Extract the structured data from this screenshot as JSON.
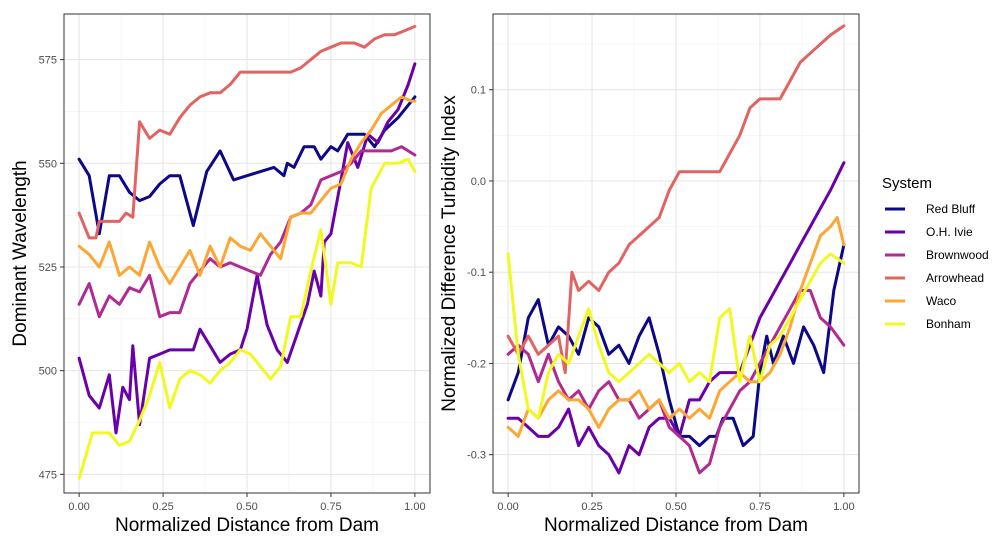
{
  "legend": {
    "title": "System",
    "placement": "right"
  },
  "chart_data": [
    {
      "type": "line",
      "xlabel": "Normalized Distance from Dam",
      "ylabel": "Dominant Wavelength",
      "xlim": [
        -0.045,
        1.045
      ],
      "ylim": [
        470.5,
        586
      ],
      "x_ticks": [
        0.0,
        0.25,
        0.5,
        0.75,
        1.0
      ],
      "x_tick_labels": [
        "0.00",
        "0.25",
        "0.50",
        "0.75",
        "1.00"
      ],
      "y_ticks": [
        475,
        500,
        525,
        550,
        575
      ],
      "y_tick_labels": [
        "475",
        "500",
        "525",
        "550",
        "575"
      ],
      "grid": true,
      "series": [
        {
          "name": "Red Bluff",
          "color": "#0d0887",
          "x": [
            0.0,
            0.03,
            0.06,
            0.09,
            0.12,
            0.15,
            0.18,
            0.21,
            0.24,
            0.27,
            0.3,
            0.34,
            0.38,
            0.42,
            0.46,
            0.5,
            0.54,
            0.58,
            0.61,
            0.62,
            0.64,
            0.67,
            0.7,
            0.72,
            0.75,
            0.77,
            0.8,
            0.83,
            0.85,
            0.88,
            0.91,
            0.95,
            1.0
          ],
          "y": [
            551,
            547,
            533,
            547,
            547,
            543,
            541,
            542,
            545,
            547,
            547,
            535,
            548,
            553,
            546,
            547,
            548,
            549,
            547,
            550,
            549,
            554,
            554,
            551,
            554,
            553,
            557,
            557,
            557,
            554,
            558,
            561,
            566
          ]
        },
        {
          "name": "O.H. Ivie",
          "color": "#6a00a8",
          "x": [
            0.0,
            0.03,
            0.06,
            0.09,
            0.11,
            0.13,
            0.15,
            0.16,
            0.18,
            0.21,
            0.24,
            0.27,
            0.3,
            0.34,
            0.36,
            0.39,
            0.42,
            0.45,
            0.48,
            0.5,
            0.53,
            0.56,
            0.59,
            0.62,
            0.65,
            0.68,
            0.7,
            0.72,
            0.73,
            0.75,
            0.78,
            0.8,
            0.83,
            0.86,
            0.89,
            0.92,
            0.95,
            0.98,
            1.0
          ],
          "y": [
            503,
            494,
            491,
            499,
            485,
            496,
            493,
            506,
            487,
            503,
            504,
            505,
            505,
            505,
            510,
            506,
            502,
            504,
            505,
            510,
            523,
            511,
            505,
            502,
            509,
            516,
            524,
            518,
            531,
            533,
            546,
            555,
            549,
            557,
            555,
            560,
            563,
            569,
            574
          ]
        },
        {
          "name": "Brownwood",
          "color": "#b12a90",
          "x": [
            0.0,
            0.03,
            0.06,
            0.09,
            0.12,
            0.15,
            0.18,
            0.21,
            0.24,
            0.27,
            0.3,
            0.33,
            0.36,
            0.39,
            0.42,
            0.45,
            0.48,
            0.51,
            0.54,
            0.57,
            0.6,
            0.63,
            0.66,
            0.69,
            0.72,
            0.75,
            0.78,
            0.81,
            0.84,
            0.87,
            0.9,
            0.93,
            0.96,
            1.0
          ],
          "y": [
            516,
            521,
            513,
            518,
            516,
            520,
            519,
            523,
            513,
            514,
            514,
            521,
            524,
            527,
            525,
            526,
            525,
            524,
            523,
            528,
            531,
            537,
            538,
            540,
            546,
            547,
            548,
            550,
            553,
            553,
            553,
            553,
            554,
            552
          ]
        },
        {
          "name": "Arrowhead",
          "color": "#e16462",
          "x": [
            0.0,
            0.03,
            0.05,
            0.06,
            0.09,
            0.12,
            0.14,
            0.16,
            0.18,
            0.21,
            0.24,
            0.27,
            0.3,
            0.33,
            0.36,
            0.39,
            0.42,
            0.45,
            0.48,
            0.51,
            0.54,
            0.57,
            0.6,
            0.63,
            0.66,
            0.69,
            0.72,
            0.75,
            0.78,
            0.82,
            0.85,
            0.88,
            0.91,
            0.94,
            0.97,
            1.0
          ],
          "y": [
            538,
            532,
            532,
            536,
            536,
            536,
            538,
            537,
            560,
            556,
            558,
            557,
            561,
            564,
            566,
            567,
            567,
            569,
            572,
            572,
            572,
            572,
            572,
            572,
            573,
            575,
            577,
            578,
            579,
            579,
            578,
            580,
            581,
            581,
            582,
            583
          ]
        },
        {
          "name": "Waco",
          "color": "#fca636",
          "x": [
            0.0,
            0.03,
            0.06,
            0.09,
            0.12,
            0.15,
            0.18,
            0.21,
            0.24,
            0.27,
            0.3,
            0.33,
            0.36,
            0.39,
            0.42,
            0.45,
            0.48,
            0.51,
            0.54,
            0.57,
            0.6,
            0.63,
            0.66,
            0.69,
            0.72,
            0.75,
            0.78,
            0.81,
            0.84,
            0.87,
            0.9,
            0.93,
            0.96,
            0.99,
            1.0
          ],
          "y": [
            530,
            528,
            525,
            531,
            523,
            525,
            523,
            531,
            525,
            521,
            525,
            529,
            523,
            530,
            525,
            532,
            530,
            529,
            533,
            530,
            527,
            537,
            538,
            538,
            541,
            544,
            545,
            551,
            555,
            558,
            562,
            564,
            566,
            565,
            565
          ]
        },
        {
          "name": "Bonham",
          "color": "#f0f921",
          "x": [
            0.0,
            0.04,
            0.06,
            0.09,
            0.12,
            0.15,
            0.18,
            0.21,
            0.24,
            0.27,
            0.3,
            0.33,
            0.36,
            0.39,
            0.42,
            0.45,
            0.48,
            0.51,
            0.54,
            0.57,
            0.6,
            0.63,
            0.66,
            0.69,
            0.72,
            0.75,
            0.77,
            0.81,
            0.84,
            0.87,
            0.91,
            0.95,
            0.98,
            1.0
          ],
          "y": [
            474,
            485,
            485,
            485,
            482,
            483,
            488,
            494,
            502,
            491,
            498,
            500,
            499,
            497,
            500,
            502,
            505,
            504,
            501,
            498,
            501,
            513,
            513,
            524,
            534,
            516,
            526,
            526,
            525,
            544,
            550,
            550,
            551,
            548
          ]
        }
      ]
    },
    {
      "type": "line",
      "xlabel": "Normalized Distance from Dam",
      "ylabel": "Normalized Difference Turbidity Index",
      "xlim": [
        -0.045,
        1.045
      ],
      "ylim": [
        -0.342,
        0.183
      ],
      "x_ticks": [
        0.0,
        0.25,
        0.5,
        0.75,
        1.0
      ],
      "x_tick_labels": [
        "0.00",
        "0.25",
        "0.50",
        "0.75",
        "1.00"
      ],
      "y_ticks": [
        -0.3,
        -0.2,
        -0.1,
        0.0,
        0.1
      ],
      "y_tick_labels": [
        "-0.3",
        "-0.2",
        "-0.1",
        "0.0",
        "0.1"
      ],
      "grid": true,
      "series": [
        {
          "name": "Red Bluff",
          "color": "#0d0887",
          "x": [
            0.0,
            0.03,
            0.06,
            0.09,
            0.12,
            0.15,
            0.18,
            0.21,
            0.24,
            0.27,
            0.3,
            0.33,
            0.36,
            0.39,
            0.42,
            0.45,
            0.48,
            0.51,
            0.54,
            0.57,
            0.6,
            0.62,
            0.64,
            0.67,
            0.7,
            0.73,
            0.75,
            0.77,
            0.79,
            0.82,
            0.85,
            0.88,
            0.91,
            0.94,
            0.97,
            1.0
          ],
          "y": [
            -0.24,
            -0.21,
            -0.15,
            -0.13,
            -0.18,
            -0.16,
            -0.17,
            -0.19,
            -0.15,
            -0.16,
            -0.19,
            -0.18,
            -0.2,
            -0.17,
            -0.15,
            -0.19,
            -0.24,
            -0.28,
            -0.28,
            -0.29,
            -0.28,
            -0.28,
            -0.26,
            -0.26,
            -0.29,
            -0.28,
            -0.21,
            -0.17,
            -0.2,
            -0.17,
            -0.2,
            -0.16,
            -0.18,
            -0.21,
            -0.12,
            -0.07
          ]
        },
        {
          "name": "O.H. Ivie",
          "color": "#6a00a8",
          "x": [
            0.0,
            0.03,
            0.06,
            0.09,
            0.12,
            0.15,
            0.18,
            0.21,
            0.24,
            0.27,
            0.3,
            0.33,
            0.36,
            0.39,
            0.42,
            0.45,
            0.48,
            0.51,
            0.54,
            0.57,
            0.6,
            0.63,
            0.66,
            0.69,
            0.72,
            0.75,
            0.78,
            0.81,
            0.84,
            0.87,
            0.9,
            0.93,
            0.96,
            1.0
          ],
          "y": [
            -0.26,
            -0.26,
            -0.27,
            -0.28,
            -0.28,
            -0.27,
            -0.25,
            -0.29,
            -0.27,
            -0.29,
            -0.3,
            -0.32,
            -0.29,
            -0.3,
            -0.27,
            -0.26,
            -0.26,
            -0.28,
            -0.24,
            -0.24,
            -0.22,
            -0.21,
            -0.21,
            -0.21,
            -0.18,
            -0.15,
            -0.13,
            -0.11,
            -0.09,
            -0.07,
            -0.05,
            -0.03,
            -0.01,
            0.02
          ]
        },
        {
          "name": "Brownwood",
          "color": "#b12a90",
          "x": [
            0.0,
            0.03,
            0.06,
            0.09,
            0.12,
            0.15,
            0.18,
            0.21,
            0.24,
            0.27,
            0.3,
            0.33,
            0.36,
            0.39,
            0.42,
            0.45,
            0.48,
            0.51,
            0.54,
            0.57,
            0.6,
            0.63,
            0.66,
            0.69,
            0.72,
            0.75,
            0.78,
            0.81,
            0.84,
            0.87,
            0.9,
            0.93,
            0.96,
            1.0
          ],
          "y": [
            -0.19,
            -0.18,
            -0.19,
            -0.22,
            -0.19,
            -0.22,
            -0.24,
            -0.23,
            -0.25,
            -0.23,
            -0.22,
            -0.24,
            -0.24,
            -0.26,
            -0.25,
            -0.24,
            -0.27,
            -0.28,
            -0.29,
            -0.32,
            -0.31,
            -0.27,
            -0.25,
            -0.23,
            -0.22,
            -0.2,
            -0.18,
            -0.16,
            -0.14,
            -0.12,
            -0.12,
            -0.15,
            -0.16,
            -0.18
          ]
        },
        {
          "name": "Arrowhead",
          "color": "#e16462",
          "x": [
            0.0,
            0.03,
            0.06,
            0.09,
            0.12,
            0.15,
            0.17,
            0.19,
            0.21,
            0.24,
            0.27,
            0.3,
            0.33,
            0.36,
            0.39,
            0.42,
            0.45,
            0.48,
            0.51,
            0.54,
            0.57,
            0.6,
            0.63,
            0.66,
            0.69,
            0.72,
            0.75,
            0.78,
            0.81,
            0.84,
            0.87,
            0.9,
            0.93,
            0.96,
            1.0
          ],
          "y": [
            -0.17,
            -0.19,
            -0.17,
            -0.19,
            -0.18,
            -0.17,
            -0.21,
            -0.1,
            -0.12,
            -0.11,
            -0.12,
            -0.1,
            -0.09,
            -0.07,
            -0.06,
            -0.05,
            -0.04,
            -0.01,
            0.01,
            0.01,
            0.01,
            0.01,
            0.01,
            0.03,
            0.05,
            0.08,
            0.09,
            0.09,
            0.09,
            0.11,
            0.13,
            0.14,
            0.15,
            0.16,
            0.17
          ]
        },
        {
          "name": "Waco",
          "color": "#fca636",
          "x": [
            0.0,
            0.03,
            0.06,
            0.09,
            0.12,
            0.15,
            0.18,
            0.21,
            0.24,
            0.27,
            0.3,
            0.33,
            0.36,
            0.39,
            0.42,
            0.45,
            0.48,
            0.51,
            0.54,
            0.57,
            0.6,
            0.63,
            0.66,
            0.69,
            0.72,
            0.75,
            0.78,
            0.81,
            0.84,
            0.87,
            0.9,
            0.93,
            0.96,
            0.98,
            1.0
          ],
          "y": [
            -0.27,
            -0.28,
            -0.25,
            -0.26,
            -0.24,
            -0.23,
            -0.24,
            -0.24,
            -0.25,
            -0.27,
            -0.25,
            -0.24,
            -0.24,
            -0.23,
            -0.25,
            -0.24,
            -0.26,
            -0.25,
            -0.26,
            -0.25,
            -0.26,
            -0.23,
            -0.22,
            -0.21,
            -0.22,
            -0.22,
            -0.21,
            -0.19,
            -0.16,
            -0.12,
            -0.09,
            -0.06,
            -0.05,
            -0.04,
            -0.07
          ]
        },
        {
          "name": "Bonham",
          "color": "#f0f921",
          "x": [
            0.0,
            0.03,
            0.06,
            0.09,
            0.12,
            0.15,
            0.18,
            0.21,
            0.24,
            0.27,
            0.3,
            0.33,
            0.36,
            0.39,
            0.42,
            0.45,
            0.48,
            0.51,
            0.54,
            0.57,
            0.6,
            0.63,
            0.66,
            0.69,
            0.72,
            0.75,
            0.78,
            0.81,
            0.84,
            0.87,
            0.9,
            0.93,
            0.96,
            1.0
          ],
          "y": [
            -0.08,
            -0.19,
            -0.25,
            -0.26,
            -0.21,
            -0.19,
            -0.2,
            -0.17,
            -0.14,
            -0.18,
            -0.21,
            -0.22,
            -0.21,
            -0.2,
            -0.19,
            -0.2,
            -0.21,
            -0.2,
            -0.22,
            -0.21,
            -0.22,
            -0.15,
            -0.14,
            -0.22,
            -0.17,
            -0.22,
            -0.18,
            -0.17,
            -0.15,
            -0.13,
            -0.11,
            -0.09,
            -0.08,
            -0.09
          ]
        }
      ]
    }
  ]
}
